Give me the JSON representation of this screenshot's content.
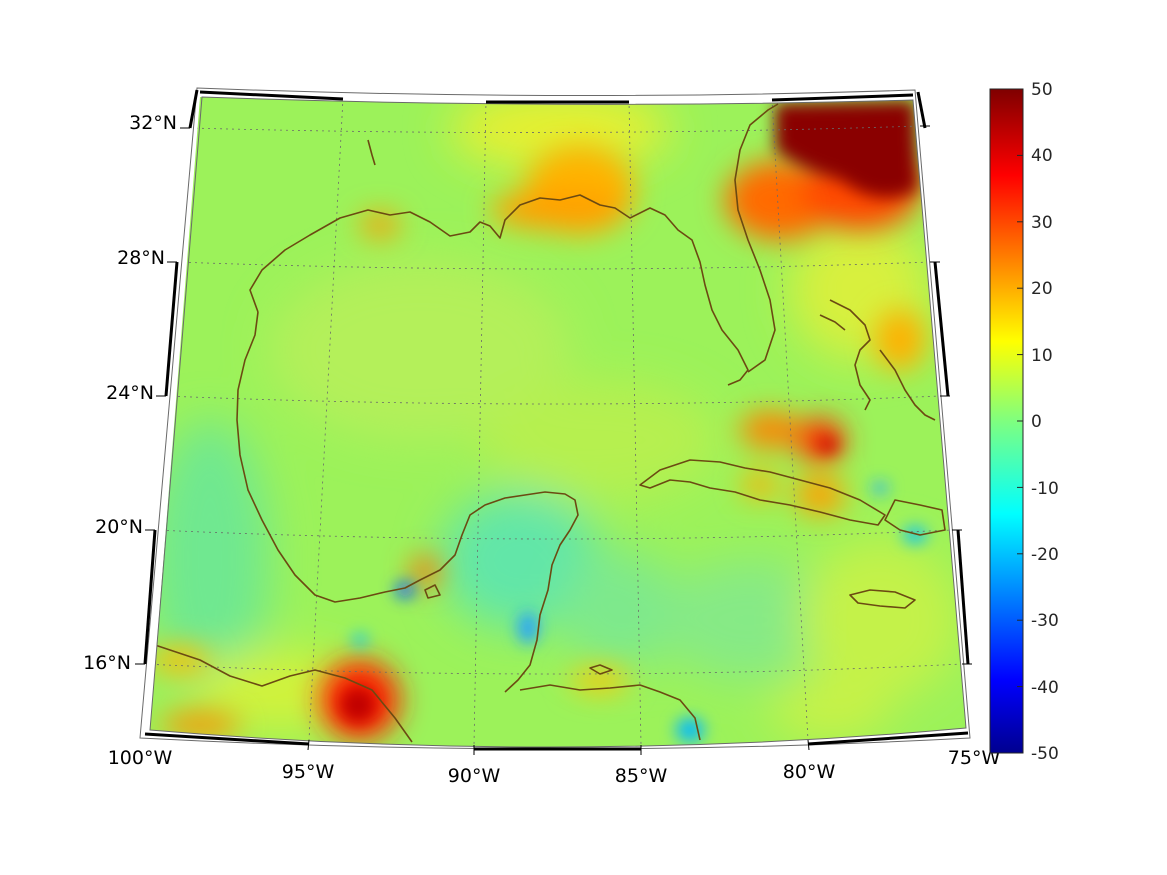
{
  "map": {
    "projection": "conic",
    "region": "Gulf of Mexico and Caribbean",
    "lat_labels": [
      "32°N",
      "28°N",
      "24°N",
      "20°N",
      "16°N"
    ],
    "lon_labels": [
      "100°W",
      "95°W",
      "90°W",
      "85°W",
      "80°W",
      "75°W"
    ],
    "grid": "dotted",
    "coastline_color": "#6b4a12"
  },
  "colorbar": {
    "colormap": "jet",
    "min": -50,
    "max": 50,
    "ticks": [
      "50",
      "40",
      "30",
      "20",
      "10",
      "0",
      "-10",
      "-20",
      "-30",
      "-40",
      "-50"
    ]
  },
  "colors": {
    "background_field": "#9cf25a",
    "high": "#7a0000",
    "low": "#00008f"
  }
}
